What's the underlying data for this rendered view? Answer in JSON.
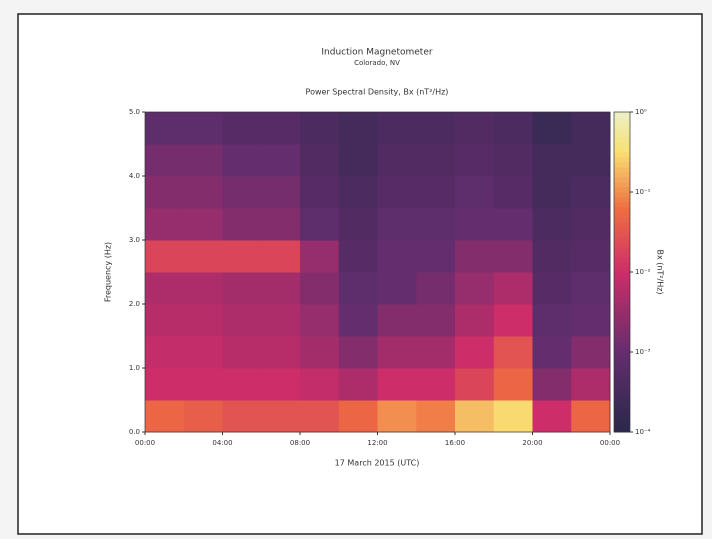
{
  "chart_data": {
    "type": "heatmap",
    "title": "Induction Magnetometer",
    "subtitle": "Colorado, NV",
    "plot_title": "Power Spectral Density, Bx (nT²/Hz)",
    "xlabel": "17 March 2015 (UTC)",
    "ylabel": "Frequency (Hz)",
    "colorbar_label": "Bx (nT²/Hz)",
    "x": [
      0,
      2,
      4,
      6,
      8,
      10,
      12,
      14,
      16,
      18,
      20,
      22
    ],
    "y": [
      0,
      0.5,
      1,
      1.5,
      2,
      2.5,
      3,
      3.5,
      4,
      4.5
    ],
    "xlim": [
      0,
      24
    ],
    "ylim": [
      0,
      5
    ],
    "xticks": [
      {
        "value": 0,
        "label": "00:00"
      },
      {
        "value": 4,
        "label": "04:00"
      },
      {
        "value": 8,
        "label": "08:00"
      },
      {
        "value": 12,
        "label": "12:00"
      },
      {
        "value": 16,
        "label": "16:00"
      },
      {
        "value": 20,
        "label": "20:00"
      },
      {
        "value": 24,
        "label": "00:00"
      }
    ],
    "yticks": [
      {
        "value": 0,
        "label": "0.0"
      },
      {
        "value": 1,
        "label": "1.0"
      },
      {
        "value": 2,
        "label": "2.0"
      },
      {
        "value": 3,
        "label": "3.0"
      },
      {
        "value": 4,
        "label": "4.0"
      },
      {
        "value": 5,
        "label": "5.0"
      }
    ],
    "clim": [
      0.0001,
      1
    ],
    "color_log_scale": true,
    "cticks": [
      {
        "value": 0.0001,
        "label": "10⁻⁴"
      },
      {
        "value": 0.001,
        "label": "10⁻³"
      },
      {
        "value": 0.01,
        "label": "10⁻²"
      },
      {
        "value": 0.1,
        "label": "10⁻¹"
      },
      {
        "value": 1,
        "label": "10⁰"
      }
    ],
    "z": [
      [
        0.05,
        0.04,
        0.03,
        0.03,
        0.03,
        0.05,
        0.1,
        0.08,
        0.2,
        0.3,
        0.01,
        0.05
      ],
      [
        0.01,
        0.01,
        0.01,
        0.01,
        0.008,
        0.005,
        0.01,
        0.01,
        0.02,
        0.05,
        0.002,
        0.005
      ],
      [
        0.008,
        0.008,
        0.006,
        0.006,
        0.004,
        0.002,
        0.004,
        0.004,
        0.01,
        0.03,
        0.001,
        0.002
      ],
      [
        0.006,
        0.006,
        0.005,
        0.005,
        0.003,
        0.001,
        0.002,
        0.002,
        0.005,
        0.01,
        0.0008,
        0.001
      ],
      [
        0.005,
        0.005,
        0.004,
        0.004,
        0.002,
        0.0008,
        0.001,
        0.0015,
        0.003,
        0.005,
        0.0006,
        0.0008
      ],
      [
        0.02,
        0.02,
        0.02,
        0.02,
        0.003,
        0.0006,
        0.001,
        0.001,
        0.002,
        0.002,
        0.0005,
        0.0006
      ],
      [
        0.003,
        0.003,
        0.002,
        0.002,
        0.0008,
        0.0005,
        0.0008,
        0.0008,
        0.001,
        0.001,
        0.0004,
        0.0005
      ],
      [
        0.002,
        0.002,
        0.0015,
        0.0015,
        0.0006,
        0.0004,
        0.0006,
        0.0006,
        0.0008,
        0.0006,
        0.0003,
        0.0004
      ],
      [
        0.0015,
        0.0015,
        0.001,
        0.001,
        0.0005,
        0.0003,
        0.0005,
        0.0005,
        0.0006,
        0.0005,
        0.0003,
        0.0003
      ],
      [
        0.0008,
        0.0008,
        0.0006,
        0.0006,
        0.0004,
        0.0003,
        0.0004,
        0.0004,
        0.0005,
        0.0004,
        0.0002,
        0.0003
      ]
    ]
  }
}
